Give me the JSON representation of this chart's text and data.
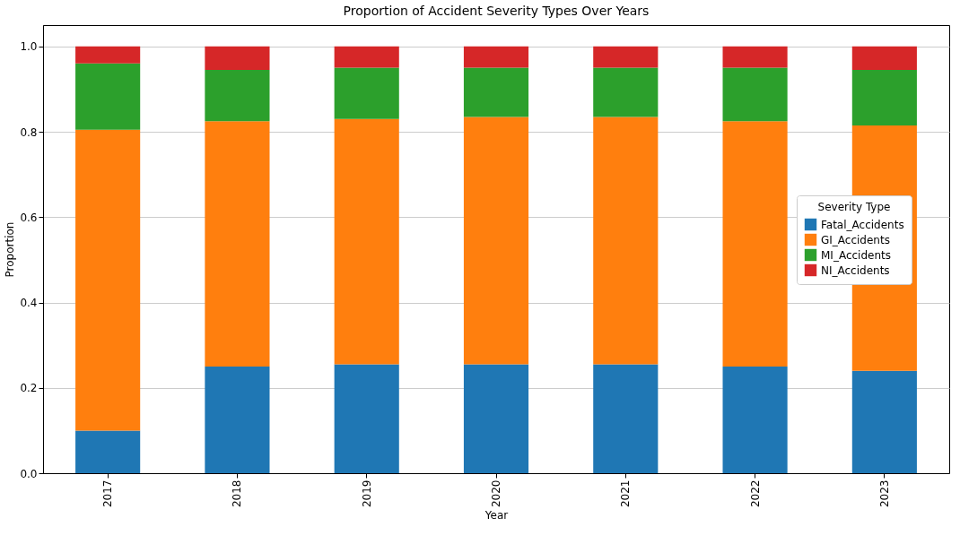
{
  "chart_data": {
    "type": "bar",
    "stacked": true,
    "title": "Proportion of Accident Severity Types Over Years",
    "xlabel": "Year",
    "ylabel": "Proportion",
    "legend_title": "Severity Type",
    "categories": [
      "2017",
      "2018",
      "2019",
      "2020",
      "2021",
      "2022",
      "2023"
    ],
    "series": [
      {
        "name": "Fatal_Accidents",
        "color": "#1f77b4",
        "values": [
          0.1,
          0.25,
          0.255,
          0.255,
          0.255,
          0.25,
          0.24
        ]
      },
      {
        "name": "GI_Accidents",
        "color": "#ff7f0e",
        "values": [
          0.705,
          0.575,
          0.575,
          0.58,
          0.58,
          0.575,
          0.575
        ]
      },
      {
        "name": "MI_Accidents",
        "color": "#2ca02c",
        "values": [
          0.155,
          0.12,
          0.12,
          0.115,
          0.115,
          0.125,
          0.13
        ]
      },
      {
        "name": "NI_Accidents",
        "color": "#d62728",
        "values": [
          0.04,
          0.055,
          0.05,
          0.05,
          0.05,
          0.05,
          0.055
        ]
      }
    ],
    "ylim": [
      0,
      1.05
    ],
    "yticks": [
      {
        "value": 0,
        "label": "0.0"
      },
      {
        "value": 0.2,
        "label": "0.2"
      },
      {
        "value": 0.4,
        "label": "0.4"
      },
      {
        "value": 0.6,
        "label": "0.6"
      },
      {
        "value": 0.8,
        "label": "0.8"
      },
      {
        "value": 1,
        "label": "1.0"
      }
    ],
    "grid": "y",
    "legend": "right"
  }
}
